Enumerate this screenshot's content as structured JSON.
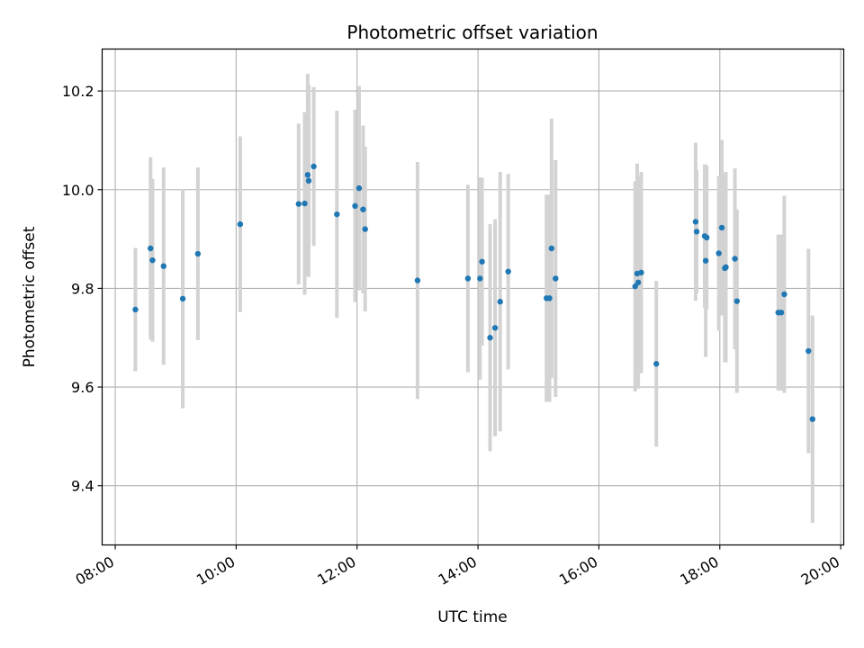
{
  "chart_data": {
    "type": "scatter",
    "title": "Photometric offset variation",
    "xlabel": "UTC time",
    "ylabel": "Photometric offset",
    "x_tick_labels": [
      "08:00",
      "10:00",
      "12:00",
      "14:00",
      "16:00",
      "18:00",
      "20:00"
    ],
    "y_tick_labels": [
      "9.4",
      "9.6",
      "9.8",
      "10.0",
      "10.2"
    ],
    "x_ticks": [
      "08:00",
      "10:00",
      "12:00",
      "14:00",
      "16:00",
      "18:00",
      "20:00"
    ],
    "y_ticks": [
      9.4,
      9.6,
      9.8,
      10.0,
      10.2
    ],
    "xlim": [
      "07:47",
      "20:03"
    ],
    "ylim": [
      9.28,
      10.285
    ],
    "grid": true,
    "colors": {
      "point": "#1f77b4",
      "errorbar": "#d3d3d3",
      "grid": "#b0b0b0"
    },
    "series": [
      {
        "x": [
          "08:20",
          "08:35",
          "08:37",
          "08:48",
          "09:07",
          "09:22",
          "10:04",
          "11:02",
          "11:08",
          "11:11",
          "11:12",
          "11:17",
          "11:40",
          "11:58",
          "12:02",
          "12:06",
          "12:08",
          "13:00",
          "13:50",
          "14:02",
          "14:04",
          "14:12",
          "14:17",
          "14:22",
          "14:30",
          "15:08",
          "15:11",
          "15:13",
          "15:17",
          "16:36",
          "16:38",
          "16:39",
          "16:42",
          "16:57",
          "17:36",
          "17:37",
          "17:45",
          "17:46",
          "17:47",
          "17:59",
          "18:02",
          "18:05",
          "18:06",
          "18:15",
          "18:17",
          "18:58",
          "19:01",
          "19:04",
          "19:28",
          "19:32"
        ],
        "y": [
          9.757,
          9.881,
          9.857,
          9.845,
          9.779,
          9.87,
          9.93,
          9.971,
          9.972,
          10.03,
          10.018,
          10.047,
          9.95,
          9.967,
          10.003,
          9.96,
          9.92,
          9.816,
          9.82,
          9.82,
          9.854,
          9.7,
          9.72,
          9.773,
          9.834,
          9.78,
          9.78,
          9.881,
          9.82,
          9.804,
          9.83,
          9.812,
          9.832,
          9.647,
          9.935,
          9.915,
          9.906,
          9.856,
          9.903,
          9.871,
          9.923,
          9.841,
          9.843,
          9.86,
          9.774,
          9.751,
          9.751,
          9.788,
          9.673,
          9.535
        ],
        "err": [
          0.125,
          0.185,
          0.165,
          0.2,
          0.222,
          0.175,
          0.178,
          0.163,
          0.185,
          0.205,
          0.195,
          0.161,
          0.21,
          0.195,
          0.207,
          0.17,
          0.167,
          0.24,
          0.19,
          0.205,
          0.17,
          0.23,
          0.22,
          0.263,
          0.198,
          0.21,
          0.21,
          0.263,
          0.24,
          0.213,
          0.223,
          0.215,
          0.204,
          0.168,
          0.16,
          0.125,
          0.145,
          0.195,
          0.145,
          0.157,
          0.178,
          0.19,
          0.193,
          0.183,
          0.186,
          0.158,
          0.158,
          0.2,
          0.207,
          0.21
        ]
      }
    ]
  }
}
